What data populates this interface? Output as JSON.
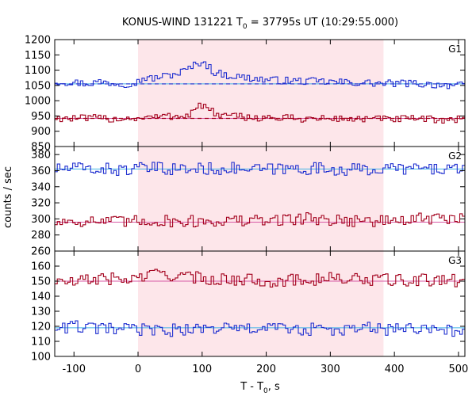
{
  "chart_data": {
    "type": "line",
    "title": "KONUS-WIND 131221 T",
    "title_subscript": "0",
    "title_rest": " = 37795s UT (10:29:55.000)",
    "xlabel": "T - T",
    "xlabel_subscript": "0",
    "xlabel_rest": ", s",
    "ylabel": "counts / sec",
    "xlim": [
      -130,
      510
    ],
    "x_ticks": [
      -100,
      0,
      100,
      200,
      300,
      400,
      500
    ],
    "x_tick_labels": [
      "-100",
      "0",
      "100",
      "200",
      "300",
      "400",
      "500"
    ],
    "highlight_interval": [
      0,
      383
    ],
    "highlight_color": "#fde6ea",
    "colors": {
      "blue": "#1f2fd0",
      "red": "#a3001c",
      "blue_background": "#43b4e6",
      "red_background": "#d85aa6"
    },
    "panels": [
      {
        "name": "G1",
        "ylim": [
          850,
          1200
        ],
        "y_ticks": [
          850,
          900,
          950,
          1000,
          1050,
          1100,
          1150,
          1200
        ],
        "y_tick_labels": [
          "850",
          "900",
          "950",
          "1000",
          "1050",
          "1100",
          "1150",
          "1200"
        ],
        "series": [
          {
            "color": "blue",
            "background": 1055,
            "points": [
              [
                -130,
                1063
              ],
              [
                -100,
                1060
              ],
              [
                -80,
                1056
              ],
              [
                -60,
                1062
              ],
              [
                -40,
                1058
              ],
              [
                -20,
                1055
              ],
              [
                0,
                1062
              ],
              [
                10,
                1076
              ],
              [
                20,
                1072
              ],
              [
                40,
                1080
              ],
              [
                60,
                1088
              ],
              [
                75,
                1100
              ],
              [
                90,
                1118
              ],
              [
                100,
                1130
              ],
              [
                110,
                1112
              ],
              [
                120,
                1092
              ],
              [
                140,
                1083
              ],
              [
                160,
                1077
              ],
              [
                180,
                1073
              ],
              [
                200,
                1068
              ],
              [
                240,
                1065
              ],
              [
                280,
                1063
              ],
              [
                320,
                1060
              ],
              [
                360,
                1058
              ],
              [
                383,
                1056
              ],
              [
                420,
                1057
              ],
              [
                460,
                1053
              ],
              [
                500,
                1050
              ],
              [
                510,
                1048
              ]
            ]
          },
          {
            "color": "red",
            "background": 942,
            "points": [
              [
                -130,
                944
              ],
              [
                -100,
                941
              ],
              [
                -80,
                942
              ],
              [
                -60,
                943
              ],
              [
                -40,
                940
              ],
              [
                -20,
                942
              ],
              [
                0,
                943
              ],
              [
                20,
                946
              ],
              [
                40,
                948
              ],
              [
                60,
                950
              ],
              [
                80,
                955
              ],
              [
                95,
                985
              ],
              [
                105,
                980
              ],
              [
                115,
                965
              ],
              [
                130,
                950
              ],
              [
                160,
                947
              ],
              [
                200,
                944
              ],
              [
                240,
                942
              ],
              [
                280,
                941
              ],
              [
                320,
                941
              ],
              [
                360,
                940
              ],
              [
                383,
                940
              ],
              [
                420,
                940
              ],
              [
                460,
                939
              ],
              [
                500,
                938
              ],
              [
                510,
                938
              ]
            ]
          }
        ]
      },
      {
        "name": "G2",
        "ylim": [
          260,
          390
        ],
        "y_ticks": [
          260,
          280,
          300,
          320,
          340,
          360,
          380
        ],
        "y_tick_labels": [
          "260",
          "280",
          "300",
          "320",
          "340",
          "360",
          "380"
        ],
        "series": [
          {
            "color": "blue",
            "background": 362,
            "points": [
              [
                -130,
                362
              ],
              [
                -100,
                363
              ],
              [
                -60,
                362
              ],
              [
                -20,
                361
              ],
              [
                20,
                363
              ],
              [
                60,
                362
              ],
              [
                100,
                362
              ],
              [
                140,
                363
              ],
              [
                180,
                361
              ],
              [
                220,
                362
              ],
              [
                260,
                363
              ],
              [
                300,
                362
              ],
              [
                340,
                361
              ],
              [
                383,
                362
              ],
              [
                420,
                363
              ],
              [
                460,
                362
              ],
              [
                510,
                363
              ]
            ]
          },
          {
            "color": "red",
            "background": 296,
            "points": [
              [
                -130,
                296
              ],
              [
                -100,
                298
              ],
              [
                -60,
                297
              ],
              [
                -20,
                296
              ],
              [
                20,
                298
              ],
              [
                60,
                297
              ],
              [
                100,
                297
              ],
              [
                140,
                298
              ],
              [
                180,
                297
              ],
              [
                220,
                299
              ],
              [
                260,
                301
              ],
              [
                300,
                299
              ],
              [
                340,
                298
              ],
              [
                383,
                297
              ],
              [
                420,
                299
              ],
              [
                460,
                300
              ],
              [
                510,
                300
              ]
            ]
          }
        ]
      },
      {
        "name": "G3",
        "ylim": [
          100,
          170
        ],
        "y_ticks": [
          100,
          110,
          120,
          130,
          140,
          150,
          160
        ],
        "y_tick_labels": [
          "100",
          "110",
          "120",
          "130",
          "140",
          "150",
          "160"
        ],
        "series": [
          {
            "color": "red",
            "background": 150,
            "points": [
              [
                -130,
                150
              ],
              [
                -100,
                149
              ],
              [
                -60,
                152
              ],
              [
                -20,
                151
              ],
              [
                0,
                152
              ],
              [
                20,
                154
              ],
              [
                40,
                156
              ],
              [
                60,
                153
              ],
              [
                100,
                152
              ],
              [
                140,
                151
              ],
              [
                180,
                151
              ],
              [
                220,
                150
              ],
              [
                260,
                151
              ],
              [
                300,
                152
              ],
              [
                340,
                151
              ],
              [
                383,
                151
              ],
              [
                420,
                150
              ],
              [
                460,
                151
              ],
              [
                510,
                150
              ]
            ]
          },
          {
            "color": "blue",
            "background": 119,
            "points": [
              [
                -130,
                119
              ],
              [
                -100,
                120
              ],
              [
                -60,
                118
              ],
              [
                -20,
                118
              ],
              [
                0,
                118
              ],
              [
                40,
                117
              ],
              [
                80,
                118
              ],
              [
                120,
                119
              ],
              [
                160,
                118
              ],
              [
                200,
                119
              ],
              [
                240,
                118
              ],
              [
                280,
                118
              ],
              [
                320,
                117
              ],
              [
                360,
                119
              ],
              [
                383,
                118
              ],
              [
                420,
                118
              ],
              [
                460,
                118
              ],
              [
                510,
                117
              ]
            ]
          }
        ]
      }
    ]
  }
}
